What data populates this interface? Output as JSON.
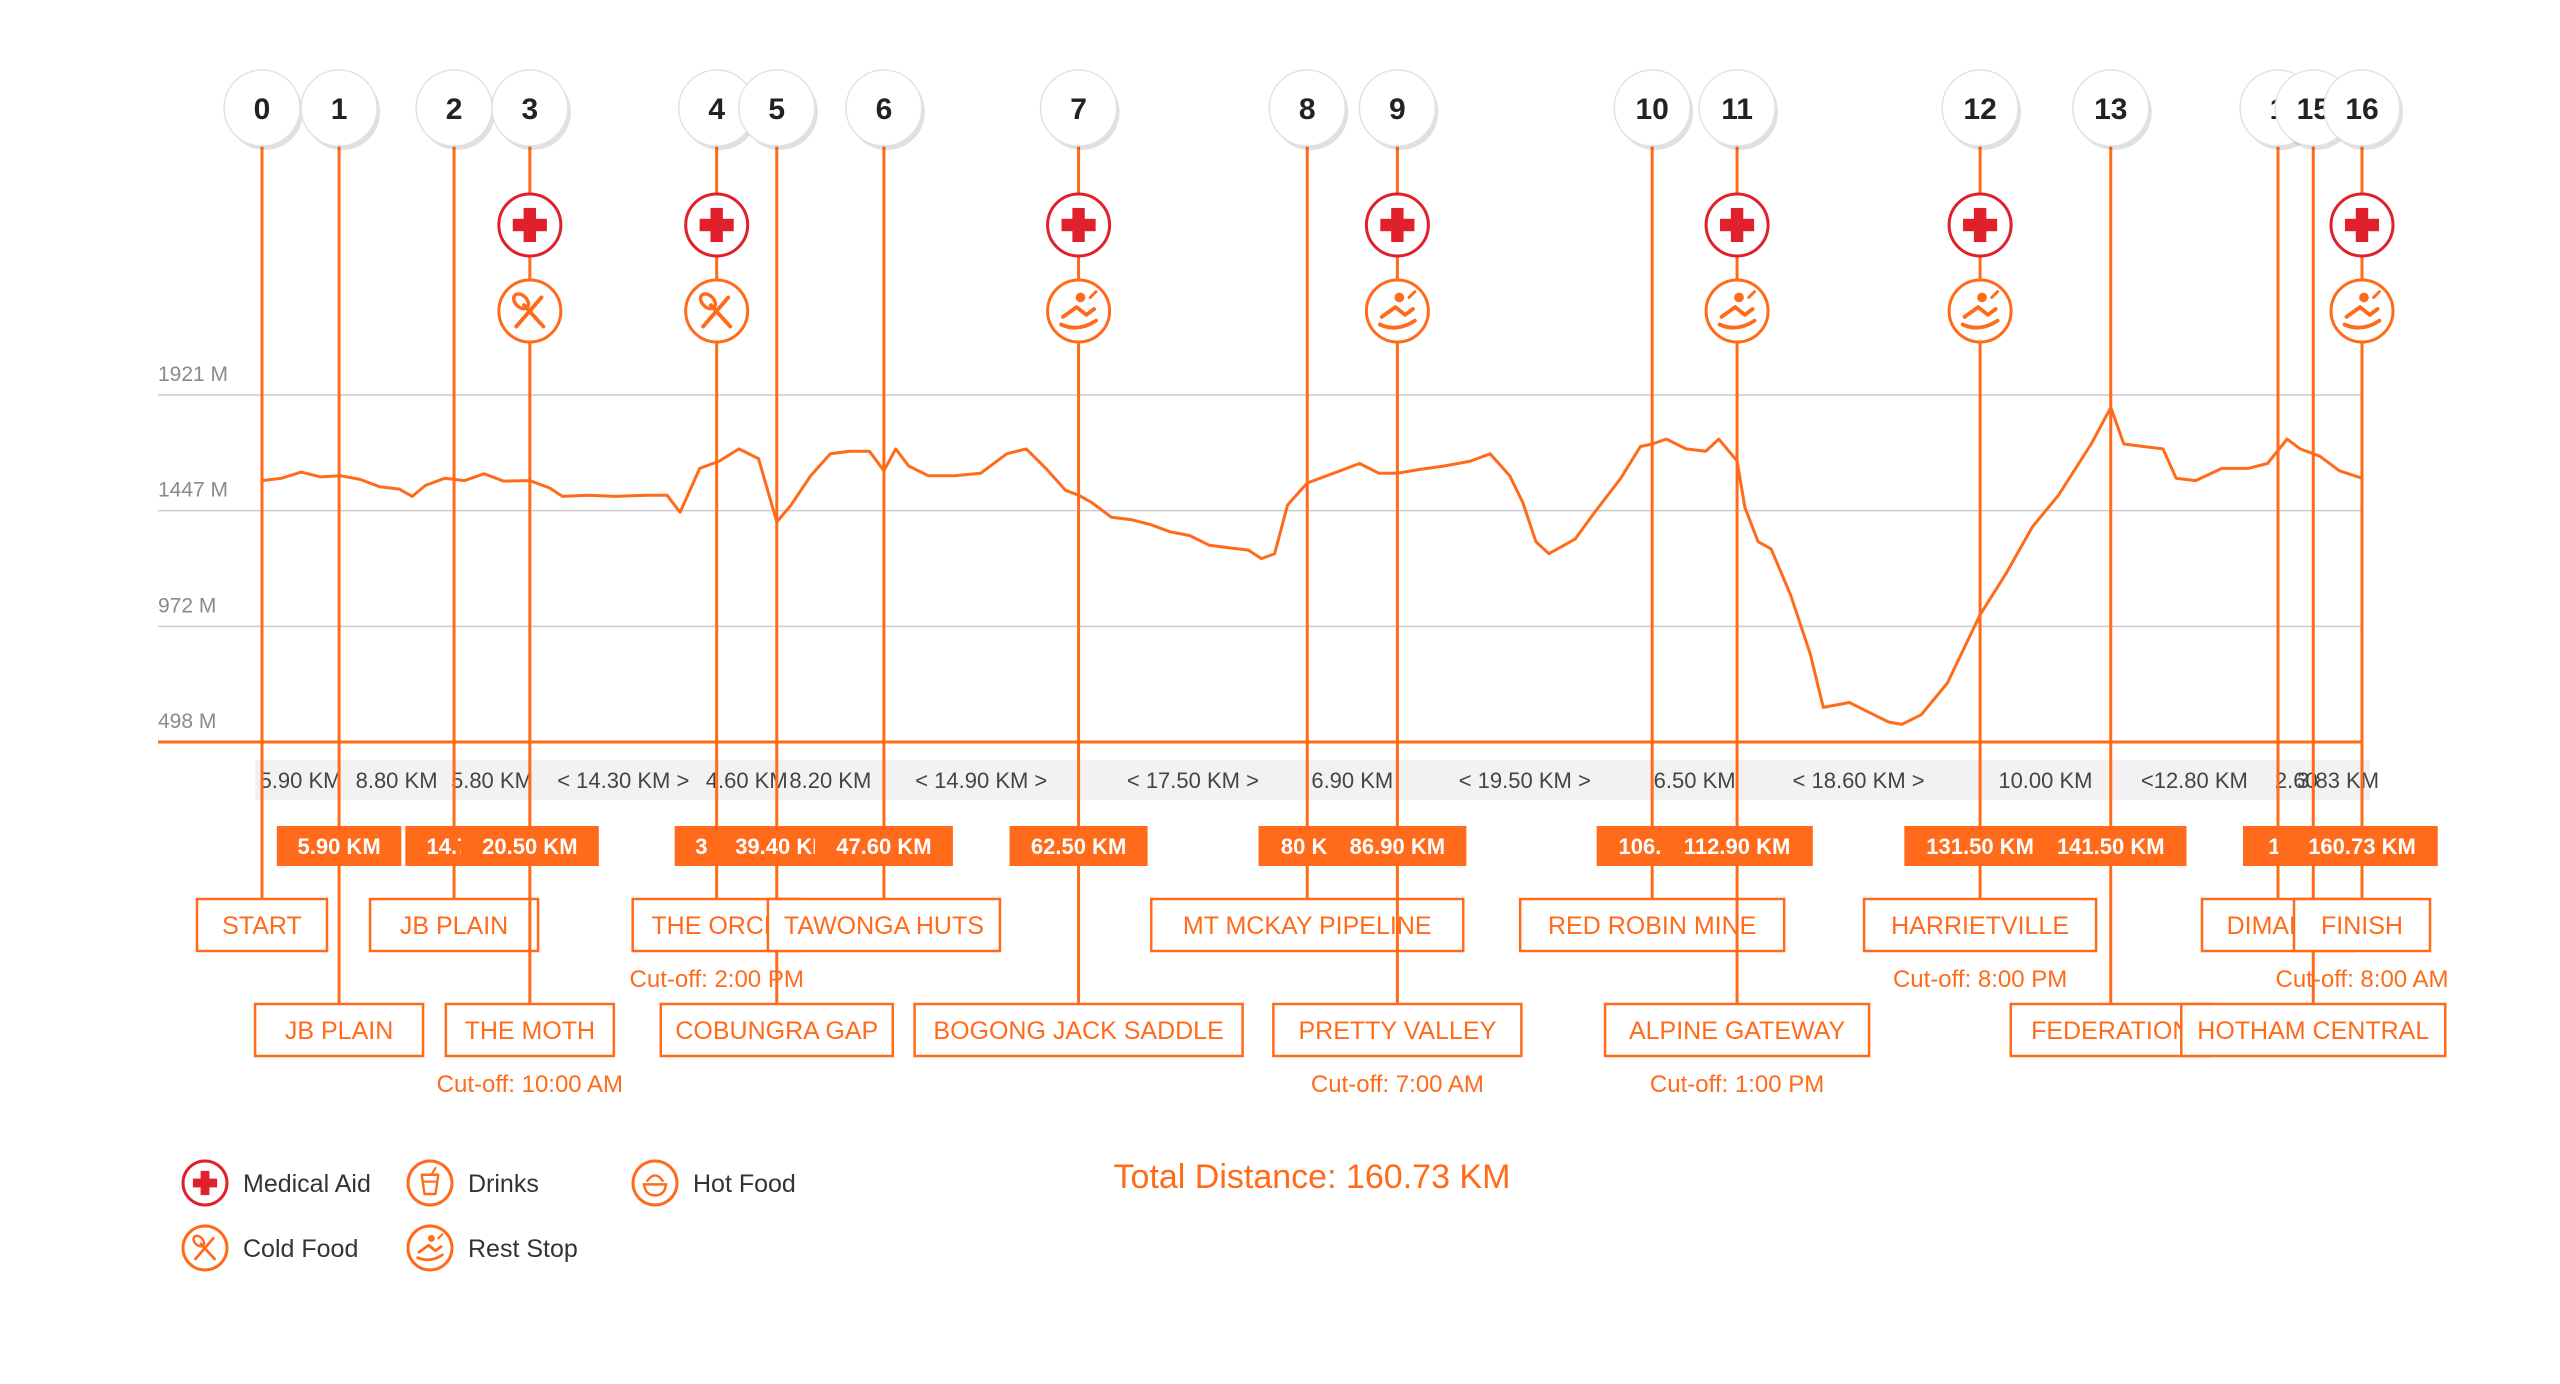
{
  "colors": {
    "accent": "#ff6b1a",
    "medical": "#e0202a",
    "grid": "#cccccc",
    "label": "#8a8a8a"
  },
  "chart_data": {
    "type": "line",
    "title": "",
    "xlabel": "",
    "ylabel": "",
    "xlim": [
      0,
      160.73
    ],
    "y_ticks": [
      {
        "value": 1921,
        "label": "1921 M"
      },
      {
        "value": 1447,
        "label": "1447 M"
      },
      {
        "value": 972,
        "label": "972 M"
      },
      {
        "value": 498,
        "label": "498 M"
      }
    ],
    "ylim": [
      498,
      1921
    ],
    "grid": true,
    "series": [
      {
        "points": [
          [
            0,
            1570
          ],
          [
            1.5,
            1580
          ],
          [
            3,
            1605
          ],
          [
            4.5,
            1585
          ],
          [
            6,
            1590
          ],
          [
            7.5,
            1575
          ],
          [
            9,
            1545
          ],
          [
            10.5,
            1535
          ],
          [
            11.5,
            1505
          ],
          [
            12.5,
            1550
          ],
          [
            14,
            1580
          ],
          [
            15.5,
            1570
          ],
          [
            17,
            1598
          ],
          [
            18.5,
            1568
          ],
          [
            20.5,
            1570
          ],
          [
            22,
            1540
          ],
          [
            23,
            1505
          ],
          [
            25,
            1510
          ],
          [
            27,
            1505
          ],
          [
            29.5,
            1510
          ],
          [
            31,
            1510
          ],
          [
            32,
            1440
          ],
          [
            33.5,
            1620
          ],
          [
            35,
            1650
          ],
          [
            36.5,
            1700
          ],
          [
            38,
            1660
          ],
          [
            39.4,
            1400
          ],
          [
            40.5,
            1470
          ],
          [
            42,
            1590
          ],
          [
            43.5,
            1680
          ],
          [
            45,
            1690
          ],
          [
            46.5,
            1690
          ],
          [
            47.6,
            1610
          ],
          [
            48.5,
            1700
          ],
          [
            49.5,
            1630
          ],
          [
            51,
            1590
          ],
          [
            53,
            1590
          ],
          [
            55,
            1600
          ],
          [
            57,
            1680
          ],
          [
            58.5,
            1700
          ],
          [
            60,
            1620
          ],
          [
            61.5,
            1530
          ],
          [
            62.5,
            1510
          ],
          [
            63.5,
            1480
          ],
          [
            65,
            1420
          ],
          [
            66.5,
            1410
          ],
          [
            68,
            1390
          ],
          [
            69.5,
            1360
          ],
          [
            71,
            1345
          ],
          [
            72.5,
            1305
          ],
          [
            74,
            1295
          ],
          [
            75.5,
            1285
          ],
          [
            76.5,
            1250
          ],
          [
            77.5,
            1270
          ],
          [
            78.5,
            1470
          ],
          [
            80,
            1560
          ],
          [
            82,
            1600
          ],
          [
            84,
            1640
          ],
          [
            85.5,
            1600
          ],
          [
            86.9,
            1600
          ],
          [
            88.5,
            1615
          ],
          [
            90.5,
            1630
          ],
          [
            92.5,
            1650
          ],
          [
            94,
            1680
          ],
          [
            95.5,
            1590
          ],
          [
            96.5,
            1480
          ],
          [
            97.5,
            1320
          ],
          [
            98.5,
            1270
          ],
          [
            100.5,
            1330
          ],
          [
            102,
            1440
          ],
          [
            104,
            1580
          ],
          [
            105.5,
            1710
          ],
          [
            106.4,
            1720
          ],
          [
            107.5,
            1740
          ],
          [
            109,
            1700
          ],
          [
            110.5,
            1690
          ],
          [
            111.5,
            1740
          ],
          [
            112.9,
            1650
          ],
          [
            113.5,
            1460
          ],
          [
            114.5,
            1320
          ],
          [
            115.5,
            1290
          ],
          [
            117,
            1100
          ],
          [
            118.5,
            860
          ],
          [
            119.5,
            640
          ],
          [
            121.5,
            660
          ],
          [
            123,
            620
          ],
          [
            124.5,
            580
          ],
          [
            125.5,
            570
          ],
          [
            127,
            610
          ],
          [
            129,
            740
          ],
          [
            131.5,
            1020
          ],
          [
            133.5,
            1190
          ],
          [
            135.5,
            1380
          ],
          [
            137.5,
            1510
          ],
          [
            140,
            1720
          ],
          [
            141.5,
            1870
          ],
          [
            142.5,
            1720
          ],
          [
            144,
            1710
          ],
          [
            145.5,
            1700
          ],
          [
            146.5,
            1580
          ],
          [
            148,
            1570
          ],
          [
            150,
            1620
          ],
          [
            152,
            1620
          ],
          [
            153.5,
            1640
          ],
          [
            155,
            1740
          ],
          [
            156,
            1700
          ],
          [
            157.5,
            1670
          ],
          [
            159,
            1610
          ],
          [
            160.73,
            1580
          ]
        ]
      }
    ],
    "waypoints": [
      {
        "num": "0",
        "km": 0,
        "dist": "",
        "name": "START",
        "cutoff": "",
        "icons": []
      },
      {
        "num": "1",
        "km": 5.9,
        "dist": "5.90 KM",
        "name": "JB PLAIN",
        "cutoff": "",
        "icons": []
      },
      {
        "num": "2",
        "km": 14.7,
        "dist": "14.70",
        "name": "JB PLAIN",
        "cutoff": "",
        "icons": []
      },
      {
        "num": "3",
        "km": 20.5,
        "dist": "20.50 KM",
        "name": "THE MOTH",
        "cutoff": "Cut-off: 10:00 AM",
        "icons": [
          "medical",
          "cold-food"
        ]
      },
      {
        "num": "4",
        "km": 34.8,
        "dist": "34.8",
        "name": "THE ORCH",
        "cutoff": "Cut-off: 2:00 PM",
        "icons": [
          "medical",
          "cold-food"
        ]
      },
      {
        "num": "5",
        "km": 39.4,
        "dist": "39.40 KI",
        "name": "COBUNGRA GAP",
        "cutoff": "",
        "icons": []
      },
      {
        "num": "6",
        "km": 47.6,
        "dist": "47.60 KM",
        "name": "TAWONGA HUTS",
        "cutoff": "",
        "icons": []
      },
      {
        "num": "7",
        "km": 62.5,
        "dist": "62.50 KM",
        "name": "BOGONG JACK SADDLE",
        "cutoff": "",
        "icons": [
          "medical",
          "rest"
        ]
      },
      {
        "num": "8",
        "km": 80,
        "dist": "80 KI",
        "name": "MT MCKAY PIPELINE",
        "cutoff": "",
        "icons": []
      },
      {
        "num": "9",
        "km": 86.9,
        "dist": "86.90 KM",
        "name": "PRETTY VALLEY",
        "cutoff": "Cut-off: 7:00 AM",
        "icons": [
          "medical",
          "rest"
        ]
      },
      {
        "num": "10",
        "km": 106.4,
        "dist": "106.40",
        "name": "RED ROBIN MINE",
        "cutoff": "",
        "icons": []
      },
      {
        "num": "11",
        "km": 112.9,
        "dist": "112.90 KM",
        "name": "ALPINE GATEWAY",
        "cutoff": "Cut-off: 1:00 PM",
        "icons": [
          "medical",
          "rest"
        ]
      },
      {
        "num": "12",
        "km": 131.5,
        "dist": "131.50 KM",
        "name": "HARRIETVILLE",
        "cutoff": "Cut-off: 8:00 PM",
        "icons": [
          "medical",
          "rest"
        ]
      },
      {
        "num": "13",
        "km": 141.5,
        "dist": "141.50 KM",
        "name": "FEDERATION",
        "cutoff": "",
        "icons": []
      },
      {
        "num": "1",
        "km": 154.3,
        "dist": "1!",
        "name": "DIMANTI",
        "cutoff": "",
        "icons": []
      },
      {
        "num": "15",
        "km": 157,
        "dist": "15",
        "name": "HOTHAM CENTRAL",
        "cutoff": "",
        "icons": []
      },
      {
        "num": "16",
        "km": 160.73,
        "dist": "160.73 KM",
        "name": "FINISH",
        "cutoff": "Cut-off: 8:00 AM",
        "icons": [
          "medical",
          "rest"
        ]
      }
    ],
    "segments": [
      {
        "text": "5.90 KM",
        "x_km": 2.95
      },
      {
        "text": "8.80 KM",
        "x_km": 10.3
      },
      {
        "text": "5.80 KM",
        "x_km": 17.6
      },
      {
        "text": "< 14.30 KM >",
        "x_km": 27.65
      },
      {
        "text": "4.60 KM",
        "x_km": 37.1
      },
      {
        "text": "8.20 KM",
        "x_km": 43.5
      },
      {
        "text": "< 14.90 KM >",
        "x_km": 55.05
      },
      {
        "text": "< 17.50 KM >",
        "x_km": 71.25
      },
      {
        "text": "6.90 KM",
        "x_km": 83.45
      },
      {
        "text": "< 19.50 KM >",
        "x_km": 96.65
      },
      {
        "text": "6.50 KM",
        "x_km": 109.65
      },
      {
        "text": "< 18.60 KM >",
        "x_km": 122.2
      },
      {
        "text": "10.00 KM",
        "x_km": 136.5
      },
      {
        "text": "<12.80 KM",
        "x_km": 147.9
      },
      {
        "text": "2.60",
        "x_km": 155.7
      },
      {
        "text": "3.83 KM",
        "x_km": 158.9
      }
    ]
  },
  "legend": {
    "items": [
      {
        "icon": "medical",
        "label": "Medical Aid"
      },
      {
        "icon": "drinks",
        "label": "Drinks"
      },
      {
        "icon": "hot-food",
        "label": "Hot Food"
      },
      {
        "icon": "cold-food",
        "label": "Cold Food"
      },
      {
        "icon": "rest",
        "label": "Rest Stop"
      }
    ]
  },
  "total": {
    "label": "Total Distance: 160.73 KM"
  }
}
